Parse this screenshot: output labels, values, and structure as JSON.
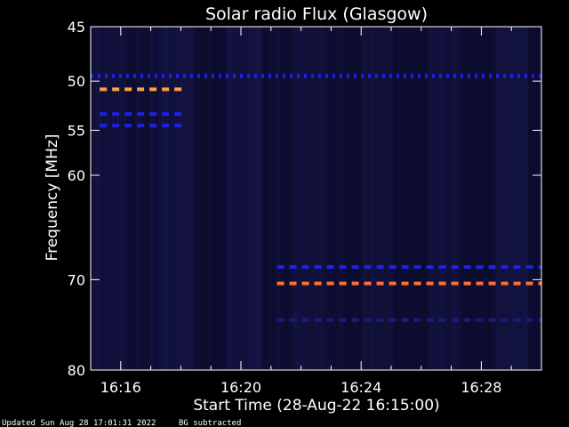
{
  "chart_data": {
    "type": "heatmap",
    "title": "Solar radio Flux (Glasgow)",
    "xlabel": "Start Time (28-Aug-22 16:15:00)",
    "ylabel": "Frequency [MHz]",
    "x_ticks": [
      {
        "label": "16:16",
        "minutes": 1
      },
      {
        "label": "16:20",
        "minutes": 5
      },
      {
        "label": "16:24",
        "minutes": 9
      },
      {
        "label": "16:28",
        "minutes": 13
      }
    ],
    "xlim_minutes": [
      0,
      15
    ],
    "y_ticks": [
      45,
      50,
      55,
      60,
      70,
      80
    ],
    "ylim": [
      45,
      80
    ],
    "y_scale": "log-like (non-linear)",
    "background_color": "#0a0a28",
    "features": [
      {
        "name": "",
        "freq_mhz": 49.5,
        "x_from_min": 0.0,
        "x_to_min": 15.0,
        "color": "#1e1ee6",
        "style": "dotted"
      },
      {
        "name": "",
        "freq_mhz": 50.8,
        "x_from_min": 0.3,
        "x_to_min": 3.1,
        "color": "#ffa040",
        "style": "dashed"
      },
      {
        "name": "",
        "freq_mhz": 53.3,
        "x_from_min": 0.3,
        "x_to_min": 3.1,
        "color": "#2020e0",
        "style": "dashed"
      },
      {
        "name": "",
        "freq_mhz": 54.5,
        "x_from_min": 0.3,
        "x_to_min": 3.1,
        "color": "#2020e0",
        "style": "dashed"
      },
      {
        "name": "",
        "freq_mhz": 68.7,
        "x_from_min": 6.2,
        "x_to_min": 15.0,
        "color": "#2020f0",
        "style": "dashed"
      },
      {
        "name": "",
        "freq_mhz": 70.4,
        "x_from_min": 6.2,
        "x_to_min": 15.0,
        "color": "#ff7030",
        "style": "dashed"
      },
      {
        "name": "",
        "freq_mhz": 74.3,
        "x_from_min": 6.2,
        "x_to_min": 15.0,
        "color": "#1a1a80",
        "style": "dashed"
      }
    ]
  },
  "footer": {
    "updated": "Updated Sun Aug 28 17:01:31 2022",
    "note": "BG subtracted"
  }
}
